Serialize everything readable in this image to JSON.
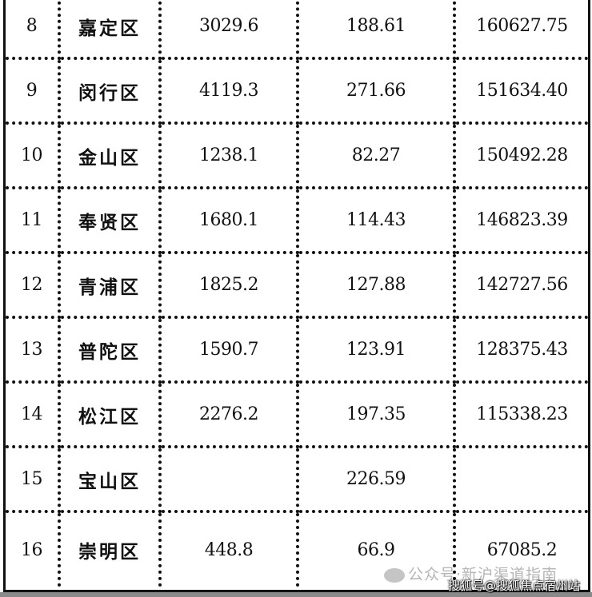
{
  "table": {
    "rows": [
      {
        "rank": "8",
        "district": "嘉定区",
        "col3": "3029.6",
        "col4": "188.61",
        "col5": "160627.75"
      },
      {
        "rank": "9",
        "district": "闵行区",
        "col3": "4119.3",
        "col4": "271.66",
        "col5": "151634.40"
      },
      {
        "rank": "10",
        "district": "金山区",
        "col3": "1238.1",
        "col4": "82.27",
        "col5": "150492.28"
      },
      {
        "rank": "11",
        "district": "奉贤区",
        "col3": "1680.1",
        "col4": "114.43",
        "col5": "146823.39"
      },
      {
        "rank": "12",
        "district": "青浦区",
        "col3": "1825.2",
        "col4": "127.88",
        "col5": "142727.56"
      },
      {
        "rank": "13",
        "district": "普陀区",
        "col3": "1590.7",
        "col4": "123.91",
        "col5": "128375.43"
      },
      {
        "rank": "14",
        "district": "松江区",
        "col3": "2276.2",
        "col4": "197.35",
        "col5": "115338.23"
      },
      {
        "rank": "15",
        "district": "宝山区",
        "col3": "",
        "col4": "226.59",
        "col5": ""
      },
      {
        "rank": "16",
        "district": "崇明区",
        "col3": "448.8",
        "col4": "66.9",
        "col5": "67085.2"
      }
    ]
  },
  "watermarks": {
    "wechat": "公众号·新沪渠道指南",
    "sohu": "搜狐号@搜狐焦点宿州站"
  }
}
